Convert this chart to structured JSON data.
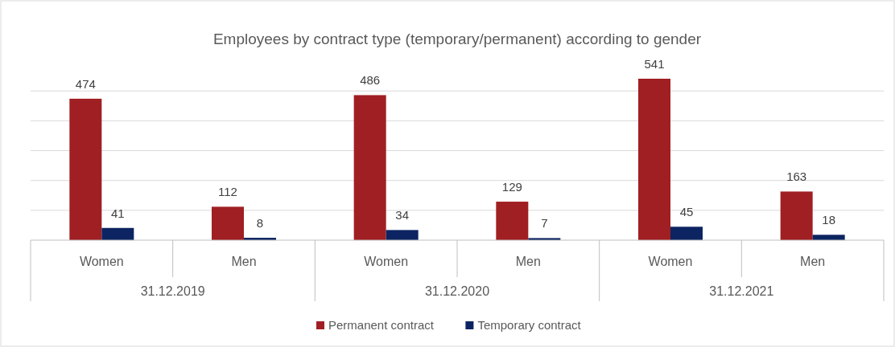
{
  "chart_data": {
    "type": "bar",
    "title": "Employees by contract type (temporary/permanent) according to gender",
    "categories": [
      "Women",
      "Men",
      "Women",
      "Men",
      "Women",
      "Men"
    ],
    "series": [
      {
        "name": "Permanent contract",
        "color": "#a01f22",
        "values": [
          474,
          112,
          486,
          129,
          541,
          163
        ]
      },
      {
        "name": "Temporary contract",
        "color": "#0c2461",
        "values": [
          41,
          8,
          34,
          7,
          45,
          18
        ]
      }
    ],
    "annotations": [
      "31.12.2019",
      "31.12.2020",
      "31.12.2021"
    ],
    "yticks": [
      {
        "value": 0,
        "label": null
      },
      {
        "value": 100,
        "label": null
      },
      {
        "value": 200,
        "label": null
      },
      {
        "value": 300,
        "label": null
      },
      {
        "value": 400,
        "label": null
      },
      {
        "value": 500,
        "label": null
      }
    ],
    "grid": "y",
    "tick_labels": "x",
    "data_labels": true,
    "legend": "bottom"
  }
}
